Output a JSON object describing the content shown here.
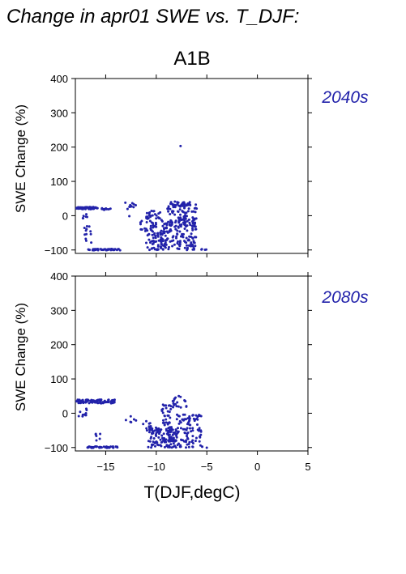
{
  "figure": {
    "title": "Change in apr01 SWE vs. T_DJF:",
    "scenario": "A1B",
    "colors": {
      "points": "#2222aa",
      "period_label": "#2222aa"
    }
  },
  "chart_data": [
    {
      "type": "scatter",
      "period": "2040s",
      "xlabel": "",
      "ylabel": "SWE Change (%)",
      "xlim": [
        -18,
        5
      ],
      "ylim": [
        -110,
        400
      ],
      "xticks": [
        -15,
        -10,
        -5,
        0,
        5
      ],
      "yticks": [
        -100,
        0,
        100,
        200,
        300,
        400
      ],
      "ytick_labels": [
        "−100",
        "0",
        "100",
        "200",
        "300",
        "400"
      ],
      "xtick_labels_shown": false,
      "clusters": [
        {
          "x": [
            -17.9,
            -15.8
          ],
          "y": [
            19,
            25
          ],
          "n": 70
        },
        {
          "x": [
            -15.5,
            -14.5
          ],
          "y": [
            17,
            22
          ],
          "n": 10
        },
        {
          "x": [
            -17.3,
            -16.8
          ],
          "y": [
            -10,
            10
          ],
          "n": 6
        },
        {
          "x": [
            -17.2,
            -16.2
          ],
          "y": [
            -80,
            -30
          ],
          "n": 12
        },
        {
          "x": [
            -16.8,
            -13.5
          ],
          "y": [
            -101,
            -97
          ],
          "n": 45
        },
        {
          "x": [
            -13.1,
            -12.0
          ],
          "y": [
            15,
            38
          ],
          "n": 10
        },
        {
          "x": [
            -12.8,
            -12.6
          ],
          "y": [
            -5,
            0
          ],
          "n": 1
        },
        {
          "x": [
            -11.6,
            -10.0
          ],
          "y": [
            -45,
            -15
          ],
          "n": 25
        },
        {
          "x": [
            -11.0,
            -9.5
          ],
          "y": [
            -10,
            15
          ],
          "n": 25
        },
        {
          "x": [
            -11.0,
            -9.0
          ],
          "y": [
            -100,
            -45
          ],
          "n": 60
        },
        {
          "x": [
            -9.6,
            -6.0
          ],
          "y": [
            -100,
            -5
          ],
          "n": 150
        },
        {
          "x": [
            -9.0,
            -6.0
          ],
          "y": [
            -30,
            35
          ],
          "n": 70
        },
        {
          "x": [
            -8.6,
            -6.5
          ],
          "y": [
            25,
            42
          ],
          "n": 30
        },
        {
          "x": [
            -5.6,
            -5.0
          ],
          "y": [
            -101,
            -97
          ],
          "n": 4
        }
      ],
      "outliers": [
        {
          "x": -7.6,
          "y": 203
        }
      ]
    },
    {
      "type": "scatter",
      "period": "2080s",
      "xlabel": "T(DJF,degC)",
      "ylabel": "SWE Change (%)",
      "xlim": [
        -18,
        5
      ],
      "ylim": [
        -110,
        400
      ],
      "xticks": [
        -15,
        -10,
        -5,
        0,
        5
      ],
      "xtick_labels": [
        "−15",
        "−10",
        "−5",
        "0",
        "5"
      ],
      "yticks": [
        -100,
        0,
        100,
        200,
        300,
        400
      ],
      "ytick_labels": [
        "−100",
        "0",
        "100",
        "200",
        "300",
        "400"
      ],
      "xtick_labels_shown": true,
      "clusters": [
        {
          "x": [
            -17.9,
            -14.0
          ],
          "y": [
            29,
            40
          ],
          "n": 90
        },
        {
          "x": [
            -17.7,
            -16.8
          ],
          "y": [
            -10,
            15
          ],
          "n": 10
        },
        {
          "x": [
            -16.0,
            -15.5
          ],
          "y": [
            -80,
            -55
          ],
          "n": 6
        },
        {
          "x": [
            -16.8,
            -13.8
          ],
          "y": [
            -101,
            -97
          ],
          "n": 45
        },
        {
          "x": [
            -12.6,
            -12.0
          ],
          "y": [
            -30,
            -5
          ],
          "n": 5
        },
        {
          "x": [
            -11.4,
            -10.4
          ],
          "y": [
            -50,
            -20
          ],
          "n": 15
        },
        {
          "x": [
            -10.8,
            -8.0
          ],
          "y": [
            -100,
            -40
          ],
          "n": 110
        },
        {
          "x": [
            -9.5,
            -8.5
          ],
          "y": [
            -35,
            25
          ],
          "n": 30
        },
        {
          "x": [
            -8.8,
            -5.5
          ],
          "y": [
            -100,
            -40
          ],
          "n": 80
        },
        {
          "x": [
            -8.0,
            -5.5
          ],
          "y": [
            -35,
            0
          ],
          "n": 40
        },
        {
          "x": [
            -8.4,
            -7.0
          ],
          "y": [
            10,
            50
          ],
          "n": 20
        },
        {
          "x": [
            -5.5,
            -5.0
          ],
          "y": [
            -101,
            -97
          ],
          "n": 3
        }
      ],
      "outliers": [
        {
          "x": -13.0,
          "y": -20
        },
        {
          "x": -16.8,
          "y": -100
        }
      ]
    }
  ]
}
